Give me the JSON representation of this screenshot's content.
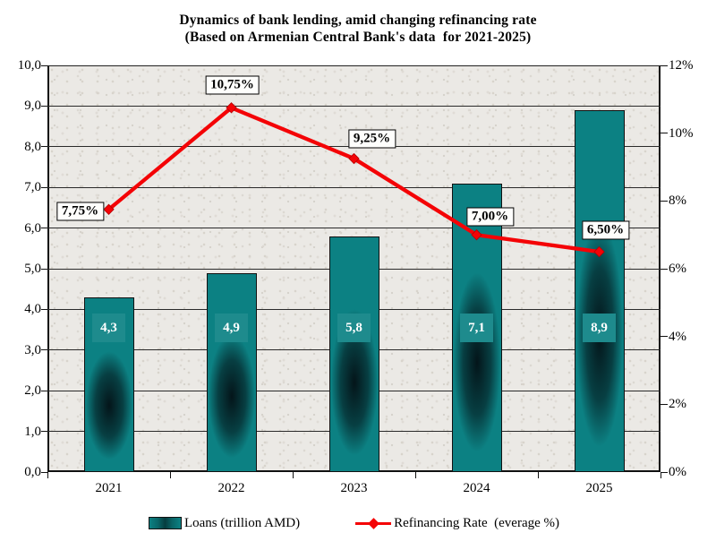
{
  "title": {
    "line1": "Dynamics of bank lending, amid changing refinancing rate",
    "line2": "(Based on Armenian Central Bank's data  for 2021-2025)"
  },
  "chart_data": {
    "type": "combo: bar + line, dual y-axes",
    "categories": [
      "2021",
      "2022",
      "2023",
      "2024",
      "2025"
    ],
    "series": [
      {
        "name": "Loans (trillion AMD)",
        "type": "bar",
        "axis": "left",
        "values": [
          4.3,
          4.9,
          5.8,
          7.1,
          8.9
        ],
        "value_labels": [
          "4,3",
          "4,9",
          "5,8",
          "7,1",
          "8,9"
        ],
        "color": "#0c8183"
      },
      {
        "name": "Refinancing Rate  (everage %)",
        "type": "line",
        "axis": "right",
        "values": [
          7.75,
          10.75,
          9.25,
          7.0,
          6.5
        ],
        "value_labels": [
          "7,75%",
          "10,75%",
          "9,25%",
          "7,00%",
          "6,50%"
        ],
        "color": "#f40306",
        "marker": "diamond"
      }
    ],
    "left_axis": {
      "min": 0,
      "max": 10,
      "step": 1,
      "tick_labels": [
        "0,0",
        "1,0",
        "2,0",
        "3,0",
        "4,0",
        "5,0",
        "6,0",
        "7,0",
        "8,0",
        "9,0",
        "10,0"
      ]
    },
    "right_axis": {
      "min": 0,
      "max": 12,
      "step": 2,
      "tick_labels": [
        "0%",
        "2%",
        "4%",
        "6%",
        "8%",
        "10%",
        "12%"
      ]
    },
    "grid": "horizontal gridlines on",
    "legend_position": "bottom",
    "plot_background": "speckled light-gray paper texture"
  },
  "legend": {
    "loans": "Loans (trillion AMD)",
    "rate": "Refinancing Rate  (everage %)"
  },
  "colors": {
    "bar": "#0c8183",
    "bar_label_patch": "#1e8b8d",
    "line": "#f40306",
    "grid": "#2a2a2a",
    "plot_bg": "#ebe9e5",
    "callout_bg": "#fefefc"
  }
}
